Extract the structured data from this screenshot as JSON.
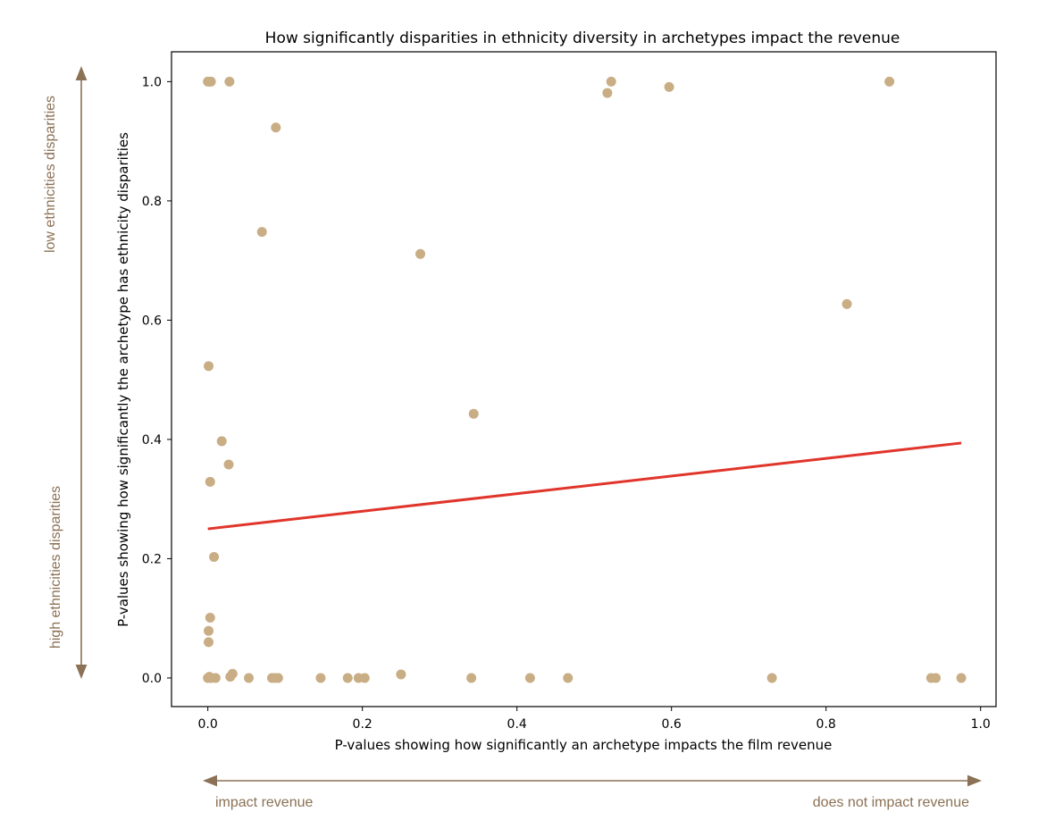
{
  "chart_data": {
    "type": "scatter",
    "title": "How significantly disparities in ethnicity diversity in archetypes impact the revenue",
    "xlabel": "P-values showing how significantly an archetype impacts the film revenue",
    "ylabel": "P-values showing how significantly the archetype has ethnicity disparities",
    "xlim": [
      -0.047,
      1.02
    ],
    "ylim": [
      -0.048,
      1.05
    ],
    "xticks": [
      0.0,
      0.2,
      0.4,
      0.6,
      0.8,
      1.0
    ],
    "xtick_labels": [
      "0.0",
      "0.2",
      "0.4",
      "0.6",
      "0.8",
      "1.0"
    ],
    "yticks": [
      0.0,
      0.2,
      0.4,
      0.6,
      0.8,
      1.0
    ],
    "ytick_labels": [
      "0.0",
      "0.2",
      "0.4",
      "0.6",
      "0.8",
      "1.0"
    ],
    "grid": false,
    "point_color": "#c9ad85",
    "trend_color": "#e0352b",
    "points": [
      [
        0.0,
        1.0
      ],
      [
        0.002,
        1.0
      ],
      [
        0.004,
        1.0
      ],
      [
        0.028,
        1.0
      ],
      [
        0.088,
        0.923
      ],
      [
        0.07,
        0.748
      ],
      [
        0.275,
        0.711
      ],
      [
        0.517,
        0.981
      ],
      [
        0.522,
        1.0
      ],
      [
        0.597,
        0.991
      ],
      [
        0.882,
        1.0
      ],
      [
        0.827,
        0.627
      ],
      [
        0.344,
        0.443
      ],
      [
        0.001,
        0.523
      ],
      [
        0.018,
        0.397
      ],
      [
        0.027,
        0.358
      ],
      [
        0.003,
        0.329
      ],
      [
        0.008,
        0.203
      ],
      [
        0.003,
        0.101
      ],
      [
        0.001,
        0.079
      ],
      [
        0.001,
        0.06
      ],
      [
        0.0,
        0.0
      ],
      [
        0.002,
        0.002
      ],
      [
        0.004,
        0.0
      ],
      [
        0.01,
        0.0
      ],
      [
        0.029,
        0.002
      ],
      [
        0.032,
        0.007
      ],
      [
        0.053,
        0.0
      ],
      [
        0.083,
        0.0
      ],
      [
        0.087,
        0.0
      ],
      [
        0.091,
        0.0
      ],
      [
        0.146,
        0.0
      ],
      [
        0.181,
        0.0
      ],
      [
        0.195,
        0.0
      ],
      [
        0.203,
        0.0
      ],
      [
        0.25,
        0.006
      ],
      [
        0.341,
        0.0
      ],
      [
        0.417,
        0.0
      ],
      [
        0.466,
        0.0
      ],
      [
        0.73,
        0.0
      ],
      [
        0.936,
        0.0
      ],
      [
        0.942,
        0.0
      ],
      [
        0.975,
        0.0
      ]
    ],
    "trend_line": {
      "x": [
        0.0,
        0.975
      ],
      "y": [
        0.25,
        0.394
      ]
    }
  },
  "annotations": {
    "top": "low ethnicities disparities",
    "bottom": "high ethnicities disparities",
    "left": "impact revenue",
    "right": "does not impact revenue",
    "color": "#8b7155"
  }
}
